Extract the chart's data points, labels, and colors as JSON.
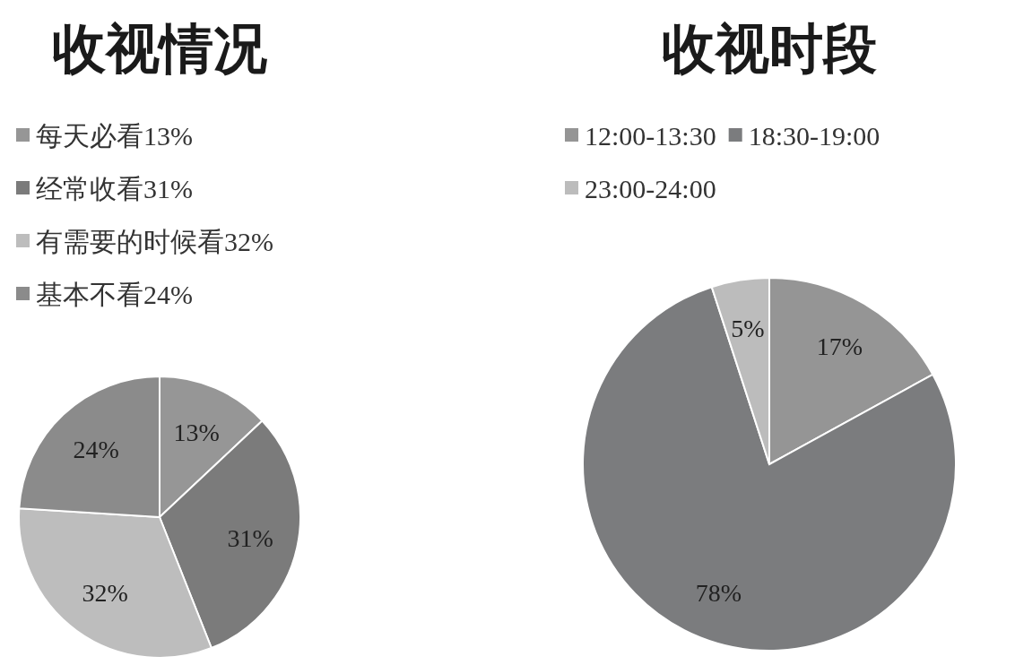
{
  "chart_data": [
    {
      "type": "pie",
      "title": "收视情况",
      "categories": [
        "每天必看13%",
        "经常收看31%",
        "有需要的时候看32%",
        "基本不看24%"
      ],
      "values": [
        13,
        31,
        32,
        24
      ],
      "colors": [
        "#969696",
        "#7b7b7b",
        "#bdbdbd",
        "#8b8b8b"
      ],
      "value_labels": [
        "13%",
        "31%",
        "32%",
        "24%"
      ],
      "legend": "top left"
    },
    {
      "type": "pie",
      "title": "收视时段",
      "categories": [
        "12:00-13:30",
        "18:30-19:00",
        "23:00-24:00"
      ],
      "values": [
        17,
        78,
        5
      ],
      "colors": [
        "#959595",
        "#7b7c7e",
        "#bcbcbc"
      ],
      "value_labels": [
        "17%",
        "78%",
        "5%"
      ],
      "legend": "top"
    }
  ]
}
